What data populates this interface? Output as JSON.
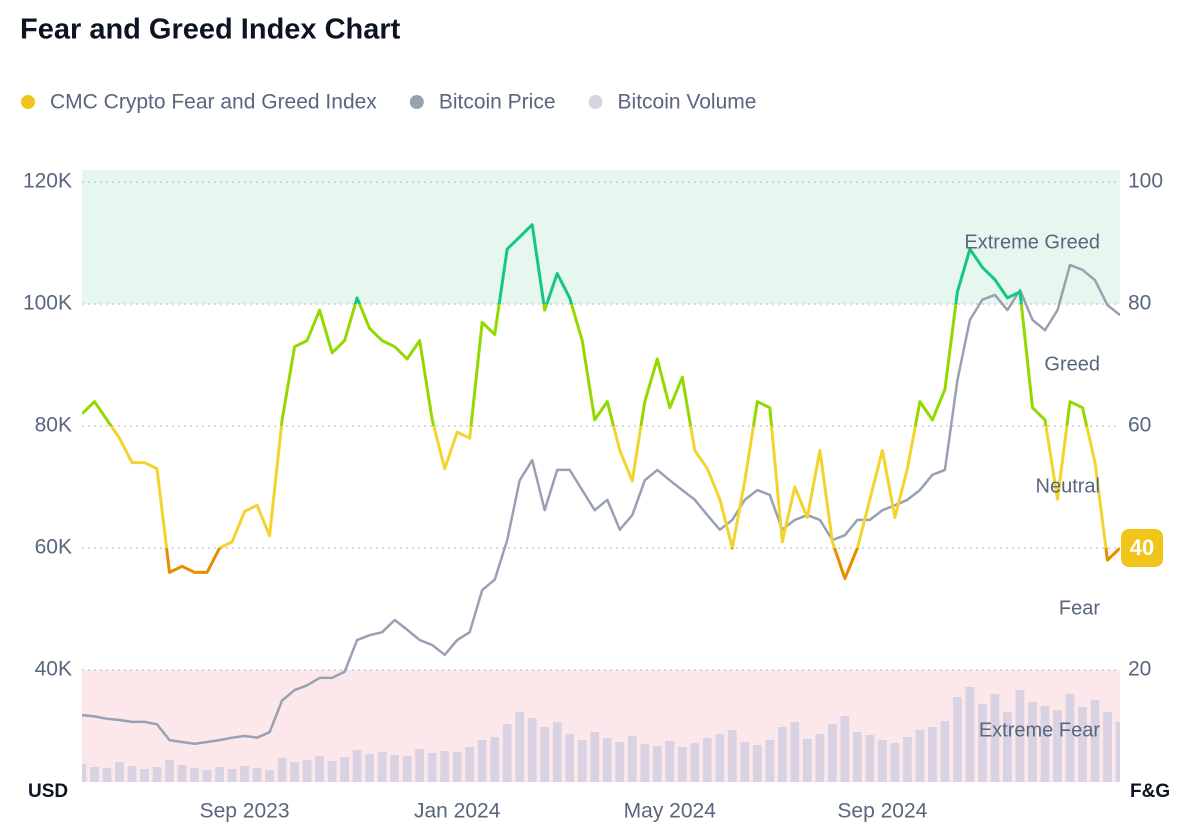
{
  "chart_data": {
    "type": "line",
    "title": "Fear and Greed Index Chart",
    "y_label": "USD",
    "y2_label": "F&G",
    "categories": [
      null,
      null,
      null,
      null,
      null,
      null,
      null,
      null,
      null,
      null,
      null,
      null,
      null,
      "Sep 2023",
      null,
      null,
      null,
      null,
      null,
      null,
      null,
      null,
      null,
      null,
      null,
      null,
      null,
      null,
      null,
      null,
      "Jan 2024",
      null,
      null,
      null,
      null,
      null,
      null,
      null,
      null,
      null,
      null,
      null,
      null,
      null,
      null,
      null,
      null,
      "May 2024",
      null,
      null,
      null,
      null,
      null,
      null,
      null,
      null,
      null,
      null,
      null,
      null,
      null,
      null,
      null,
      null,
      "Sep 2024",
      null,
      null,
      null,
      null,
      null,
      null,
      null,
      null,
      null,
      null,
      null,
      null,
      null,
      null,
      null,
      null,
      null,
      null,
      null
    ],
    "series": [
      {
        "name": "CMC Crypto Fear and Greed Index",
        "color": "#f0c419",
        "axis": "y2",
        "values": [
          62,
          64,
          61,
          58,
          54,
          54,
          53,
          36,
          37,
          36,
          36,
          40,
          41,
          46,
          47,
          42,
          61,
          73,
          74,
          79,
          72,
          74,
          81,
          76,
          74,
          73,
          71,
          74,
          61,
          53,
          59,
          58,
          77,
          75,
          89,
          91,
          93,
          79,
          85,
          81,
          74,
          61,
          64,
          56,
          51,
          64,
          71,
          63,
          68,
          56,
          53,
          48,
          40,
          51,
          64,
          63,
          41,
          50,
          45,
          56,
          41,
          35,
          40,
          48,
          56,
          45,
          53,
          64,
          61,
          66,
          82,
          89,
          86,
          84,
          81,
          82,
          63,
          61,
          48,
          64,
          63,
          54,
          38,
          40
        ]
      },
      {
        "name": "Bitcoin Price",
        "color": "#98a1b3",
        "axis": "y",
        "values": [
          32600,
          32400,
          32000,
          31800,
          31500,
          31500,
          31100,
          28500,
          28200,
          27900,
          28200,
          28500,
          28900,
          29200,
          28900,
          29800,
          35000,
          36700,
          37500,
          38700,
          38700,
          39700,
          44900,
          45700,
          46200,
          48200,
          46600,
          44900,
          44100,
          42500,
          44900,
          46200,
          53100,
          54800,
          61300,
          71100,
          74400,
          66200,
          72800,
          72800,
          69500,
          66200,
          67900,
          63000,
          65400,
          71100,
          72800,
          71100,
          69500,
          67900,
          65400,
          63000,
          64600,
          67900,
          69500,
          68700,
          63000,
          64600,
          65400,
          64600,
          61300,
          62100,
          64600,
          64600,
          66200,
          67000,
          67900,
          69500,
          72000,
          72800,
          87500,
          97400,
          100700,
          101500,
          99000,
          102300,
          97400,
          95700,
          99000,
          106400,
          105600,
          103900,
          99800,
          98200
        ]
      },
      {
        "name": "Bitcoin Volume",
        "color": "#d8d2e2",
        "axis": "volume",
        "values": [
          18,
          15,
          14,
          20,
          16,
          13,
          15,
          22,
          17,
          14,
          12,
          15,
          13,
          16,
          14,
          12,
          24,
          20,
          22,
          26,
          21,
          25,
          32,
          28,
          30,
          27,
          26,
          33,
          29,
          31,
          30,
          35,
          42,
          45,
          58,
          70,
          64,
          55,
          60,
          48,
          42,
          50,
          44,
          40,
          46,
          38,
          36,
          41,
          35,
          39,
          44,
          48,
          52,
          40,
          37,
          42,
          55,
          60,
          43,
          48,
          58,
          66,
          50,
          47,
          42,
          39,
          45,
          52,
          55,
          61,
          85,
          95,
          78,
          88,
          70,
          92,
          80,
          76,
          72,
          88,
          75,
          82,
          70,
          60
        ]
      }
    ],
    "ylim": [
      20000,
      120000
    ],
    "yticks": [
      {
        "value": 40000,
        "label": "40K"
      },
      {
        "value": 60000,
        "label": "60K"
      },
      {
        "value": 80000,
        "label": "80K"
      },
      {
        "value": 100000,
        "label": "100K"
      },
      {
        "value": 120000,
        "label": "120K"
      }
    ],
    "y2lim": [
      0,
      100
    ],
    "y2ticks": [
      20,
      40,
      60,
      80,
      100
    ],
    "grid": true,
    "zones": [
      {
        "label": "Extreme Fear",
        "range": [
          0,
          20
        ],
        "color": "#ea3943",
        "shaded": true,
        "band": "#fce8ea"
      },
      {
        "label": "Fear",
        "range": [
          20,
          40
        ],
        "color": "#ea8c00",
        "shaded": false
      },
      {
        "label": "Neutral",
        "range": [
          40,
          60
        ],
        "color": "#f3d42f",
        "shaded": false
      },
      {
        "label": "Greed",
        "range": [
          60,
          80
        ],
        "color": "#93d900",
        "shaded": false
      },
      {
        "label": "Extreme Greed",
        "range": [
          80,
          100
        ],
        "color": "#16c784",
        "shaded": true,
        "band": "#e6f7ef"
      }
    ]
  }
}
